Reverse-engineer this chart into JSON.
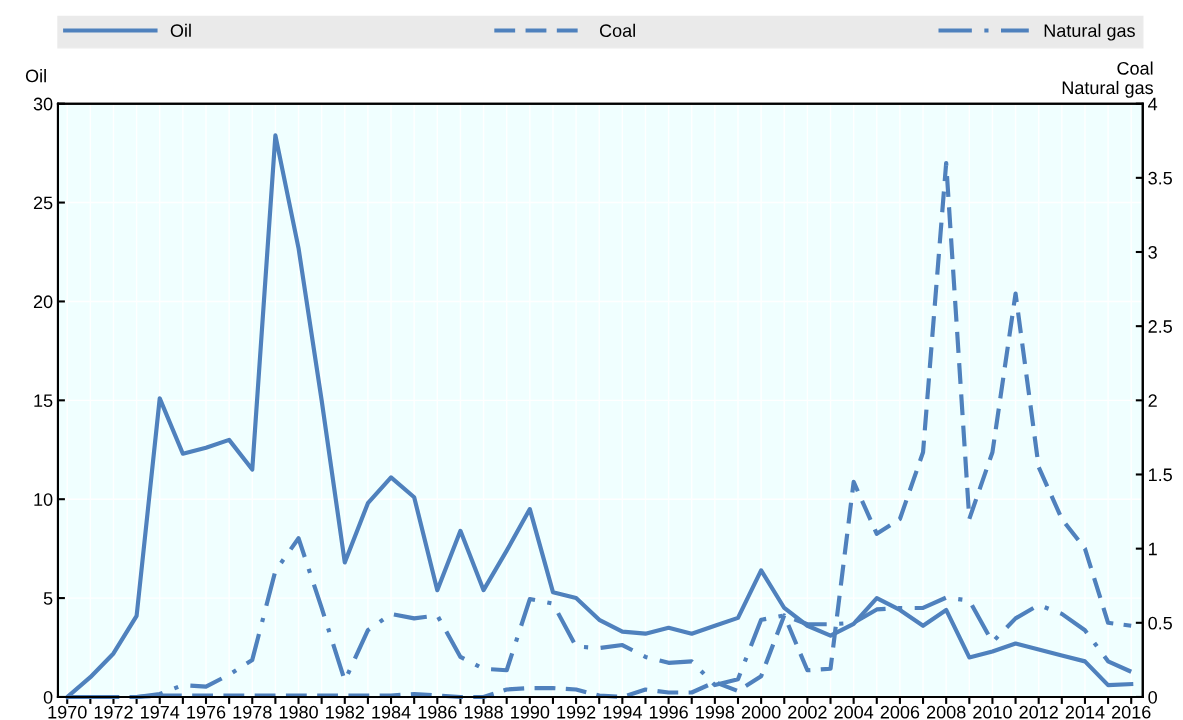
{
  "chart_data": {
    "type": "line",
    "ylabel": "Oil",
    "y2label": "Coal\nNatural gas",
    "x": [
      1970,
      1971,
      1972,
      1973,
      1974,
      1975,
      1976,
      1977,
      1978,
      1979,
      1980,
      1981,
      1982,
      1983,
      1984,
      1985,
      1986,
      1987,
      1988,
      1989,
      1990,
      1991,
      1992,
      1993,
      1994,
      1995,
      1996,
      1997,
      1998,
      1999,
      2000,
      2001,
      2002,
      2003,
      2004,
      2005,
      2006,
      2007,
      2008,
      2009,
      2010,
      2011,
      2012,
      2013,
      2014,
      2015,
      2016
    ],
    "series": [
      {
        "name": "Oil",
        "color": "#4f81bd",
        "line_style": "solid",
        "values": [
          0,
          1.0,
          2.2,
          4.1,
          15.1,
          12.3,
          12.6,
          13.0,
          11.5,
          28.4,
          22.7,
          15.0,
          6.8,
          9.8,
          11.1,
          10.1,
          5.4,
          8.4,
          5.4,
          7.4,
          9.5,
          5.3,
          5.0,
          3.9,
          3.3,
          3.2,
          3.5,
          3.2,
          3.6,
          4.0,
          6.4,
          4.5,
          3.6,
          3.1,
          3.7,
          5.0,
          4.4,
          3.6,
          4.4,
          2.0,
          2.3,
          2.7,
          2.4,
          2.1,
          1.8,
          0.6,
          0.65
        ]
      },
      {
        "name": "Coal",
        "color": "#4f81bd",
        "line_style": "dashed",
        "axis": "y2",
        "values": [
          0,
          0,
          0,
          0,
          0.01,
          0.01,
          0.01,
          0.01,
          0.01,
          0.01,
          0.01,
          0.01,
          0.01,
          0.01,
          0.01,
          0.02,
          0.01,
          0,
          0,
          0.05,
          0.06,
          0.06,
          0.05,
          0.01,
          0,
          0.05,
          0.03,
          0.03,
          0.1,
          0.04,
          0.14,
          0.55,
          0.18,
          0.19,
          1.45,
          1.1,
          1.2,
          1.65,
          3.6,
          1.2,
          1.65,
          2.72,
          1.55,
          1.2,
          1.0,
          0.5,
          0.48
        ]
      },
      {
        "name": "Natural gas",
        "color": "#4f81bd",
        "line_style": "dashdot",
        "axis": "y2",
        "values": [
          0,
          0,
          0,
          0,
          0.02,
          0.08,
          0.07,
          0.15,
          0.25,
          0.85,
          1.07,
          0.6,
          0.11,
          0.45,
          0.56,
          0.53,
          0.55,
          0.27,
          0.19,
          0.18,
          0.66,
          0.63,
          0.34,
          0.33,
          0.35,
          0.27,
          0.23,
          0.24,
          0.08,
          0.12,
          0.52,
          0.55,
          0.49,
          0.49,
          0.5,
          0.59,
          0.6,
          0.6,
          0.67,
          0.65,
          0.37,
          0.53,
          0.62,
          0.56,
          0.45,
          0.24,
          0.17
        ]
      }
    ],
    "xlim": [
      1969.6,
      2016.5
    ],
    "xticks": [
      1970,
      {
        "value": 1971,
        "label": null
      },
      1972,
      {
        "value": 1973,
        "label": null
      },
      1974,
      {
        "value": 1975,
        "label": null
      },
      1976,
      {
        "value": 1977,
        "label": null
      },
      1978,
      {
        "value": 1979,
        "label": null
      },
      1980,
      {
        "value": 1981,
        "label": null
      },
      1982,
      {
        "value": 1983,
        "label": null
      },
      1984,
      {
        "value": 1985,
        "label": null
      },
      1986,
      {
        "value": 1987,
        "label": null
      },
      1988,
      {
        "value": 1989,
        "label": null
      },
      1990,
      {
        "value": 1991,
        "label": null
      },
      1992,
      {
        "value": 1993,
        "label": null
      },
      1994,
      {
        "value": 1995,
        "label": null
      },
      1996,
      {
        "value": 1997,
        "label": null
      },
      1998,
      {
        "value": 1999,
        "label": null
      },
      2000,
      {
        "value": 2001,
        "label": null
      },
      2002,
      {
        "value": 2003,
        "label": null
      },
      2004,
      {
        "value": 2005,
        "label": null
      },
      2006,
      {
        "value": 2007,
        "label": null
      },
      2008,
      {
        "value": 2009,
        "label": null
      },
      2010,
      {
        "value": 2011,
        "label": null
      },
      2012,
      {
        "value": 2013,
        "label": null
      },
      2014,
      {
        "value": 2015,
        "label": null
      },
      2016
    ],
    "ylim": [
      0,
      30
    ],
    "yticks": [
      0,
      5,
      10,
      15,
      20,
      25,
      30
    ],
    "y2lim": [
      0,
      4
    ],
    "y2ticks": [
      0,
      0.5,
      1,
      1.5,
      2,
      2.5,
      3,
      3.5,
      4
    ],
    "grid": true,
    "legend": "top",
    "marker": "none"
  }
}
